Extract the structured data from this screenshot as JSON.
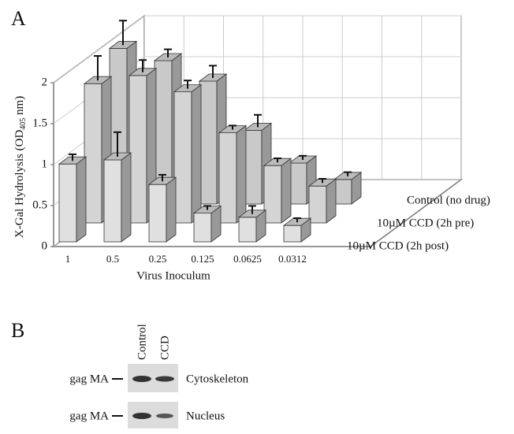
{
  "panel_labels": [
    "A",
    "B"
  ],
  "chart_data": {
    "type": "bar3d",
    "ylabel": [
      "X-Gal Hydrolysis (OD",
      "405",
      " nm)"
    ],
    "xlabel": "Virus Inoculum",
    "categories": [
      "1",
      "0.5",
      "0.25",
      "0.125",
      "0.0625",
      "0.0312"
    ],
    "series": [
      {
        "name": "Control (no drug)",
        "color": "#c9c9c9",
        "values": [
          1.9,
          1.75,
          1.5,
          0.9,
          0.5,
          0.3
        ],
        "errors": [
          0.3,
          0.1,
          0.15,
          0.15,
          0.05,
          0.05
        ]
      },
      {
        "name": "10µM CCD (2h pre)",
        "color": "#d4d4d4",
        "values": [
          1.7,
          1.8,
          1.6,
          1.1,
          0.7,
          0.45
        ],
        "errors": [
          0.3,
          0.15,
          0.1,
          0.05,
          0.05,
          0.05
        ]
      },
      {
        "name": "10µM CCD (2h post)",
        "color": "#e0e0e0",
        "values": [
          0.95,
          1.0,
          0.7,
          0.35,
          0.3,
          0.2
        ],
        "errors": [
          0.08,
          0.3,
          0.08,
          0.05,
          0.1,
          0.05
        ]
      }
    ],
    "ylim": [
      0,
      2
    ],
    "yticks": [
      0,
      0.5,
      1,
      1.5,
      2
    ],
    "grid": true
  },
  "blot": {
    "columns": [
      "Control",
      "CCD"
    ],
    "rows": [
      {
        "marker": "gag MA",
        "label": "Cytoskeleton"
      },
      {
        "marker": "gag MA",
        "label": "Nucleus"
      }
    ]
  }
}
